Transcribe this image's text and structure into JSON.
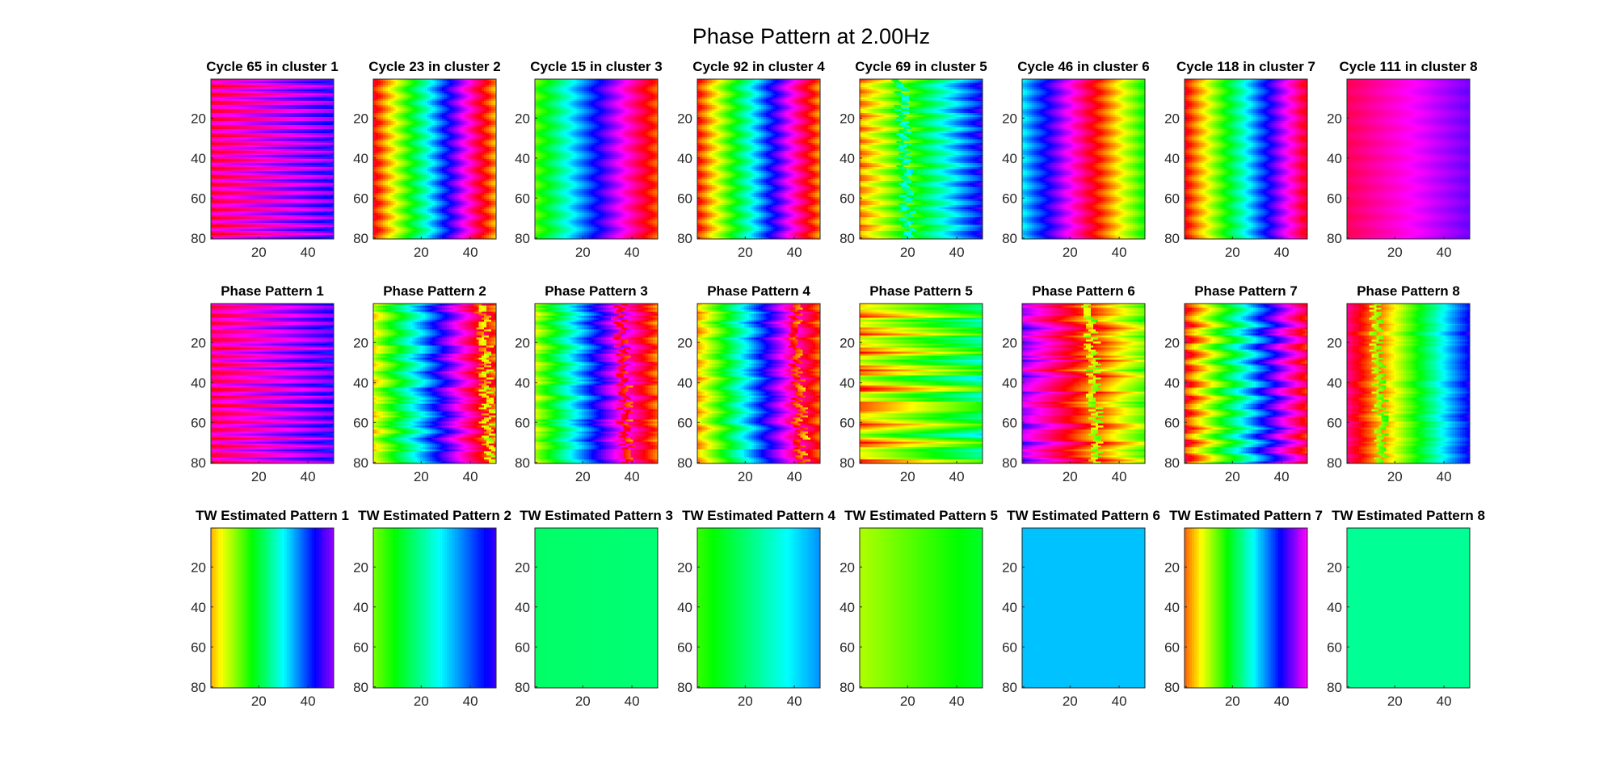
{
  "figure_title": "Phase Pattern at 2.00Hz",
  "colormap": "hsv",
  "chart_data": [
    {
      "type": "heatmap",
      "row": 1,
      "panels": [
        {
          "title": "Cycle 65 in cluster 1",
          "phase_start": 0.92,
          "phase_end": 0.72,
          "stripes": 0.08,
          "stripe_freq": 0.9,
          "jitter": 0.0,
          "wave_at": null
        },
        {
          "title": "Cycle 23 in cluster 2",
          "phase_start": 0.0,
          "phase_end": 1.1,
          "stripes": 0.04,
          "stripe_freq": 0.55,
          "jitter": 0.0,
          "wave_at": null
        },
        {
          "title": "Cycle 15 in cluster 3",
          "phase_start": 0.28,
          "phase_end": 1.05,
          "stripes": 0.03,
          "stripe_freq": 0.5,
          "jitter": 0.0,
          "wave_at": null
        },
        {
          "title": "Cycle 92 in cluster 4",
          "phase_start": 0.02,
          "phase_end": 1.08,
          "stripes": 0.04,
          "stripe_freq": 0.55,
          "jitter": 0.0,
          "wave_at": null
        },
        {
          "title": "Cycle 69 in cluster 5",
          "phase_start": 0.1,
          "phase_end": 0.72,
          "stripes": 0.05,
          "stripe_freq": 0.6,
          "jitter": 0.02,
          "wave_at": 17
        },
        {
          "title": "Cycle 46 in cluster 6",
          "phase_start": 0.52,
          "phase_end": 1.32,
          "stripes": 0.03,
          "stripe_freq": 0.55,
          "jitter": 0.0,
          "wave_at": null
        },
        {
          "title": "Cycle 118 in cluster 7",
          "phase_start": 0.0,
          "phase_end": 0.98,
          "stripes": 0.03,
          "stripe_freq": 0.55,
          "jitter": 0.0,
          "wave_at": null
        },
        {
          "title": "Cycle 111 in cluster 8",
          "phase_start": 0.94,
          "phase_end": 0.74,
          "stripes": 0.01,
          "stripe_freq": 0.5,
          "jitter": 0.0,
          "wave_at": null
        }
      ]
    },
    {
      "type": "heatmap",
      "row": 2,
      "panels": [
        {
          "title": "Phase Pattern 1",
          "phase_start": 0.92,
          "phase_end": 0.72,
          "stripes": 0.07,
          "stripe_freq": 0.9,
          "jitter": 0.03,
          "wave_at": null
        },
        {
          "title": "Phase Pattern 2",
          "phase_start": 0.18,
          "phase_end": 1.1,
          "stripes": 0.05,
          "stripe_freq": 0.45,
          "jitter": 0.03,
          "wave_at": 45
        },
        {
          "title": "Phase Pattern 3",
          "phase_start": 0.22,
          "phase_end": 1.12,
          "stripes": 0.04,
          "stripe_freq": 0.45,
          "jitter": 0.03,
          "wave_at": 35
        },
        {
          "title": "Phase Pattern 4",
          "phase_start": 0.12,
          "phase_end": 1.1,
          "stripes": 0.04,
          "stripe_freq": 0.45,
          "jitter": 0.03,
          "wave_at": 40
        },
        {
          "title": "Phase Pattern 5",
          "phase_start": 0.12,
          "phase_end": 0.38,
          "stripes": 0.09,
          "stripe_freq": 0.4,
          "jitter": 0.06,
          "wave_at": null
        },
        {
          "title": "Phase Pattern 6",
          "phase_start": 0.78,
          "phase_end": 1.32,
          "stripes": 0.05,
          "stripe_freq": 0.45,
          "jitter": 0.05,
          "wave_at": 28
        },
        {
          "title": "Phase Pattern 7",
          "phase_start": 0.02,
          "phase_end": 0.98,
          "stripes": 0.06,
          "stripe_freq": 0.5,
          "jitter": 0.03,
          "wave_at": null
        },
        {
          "title": "Phase Pattern 8",
          "phase_start": 0.92,
          "phase_end": 1.72,
          "stripes": 0.02,
          "stripe_freq": 0.45,
          "jitter": 0.02,
          "wave_at": 12
        }
      ]
    },
    {
      "type": "heatmap",
      "row": 3,
      "panels": [
        {
          "title": "TW Estimated Pattern 1",
          "phase_start": 0.12,
          "phase_end": 0.76,
          "stripes": 0,
          "stripe_freq": 0,
          "jitter": 0,
          "wave_at": null
        },
        {
          "title": "TW Estimated Pattern 2",
          "phase_start": 0.26,
          "phase_end": 0.7,
          "stripes": 0,
          "stripe_freq": 0,
          "jitter": 0,
          "wave_at": null
        },
        {
          "title": "TW Estimated Pattern 3",
          "phase_start": 0.4,
          "phase_end": 0.41,
          "stripes": 0,
          "stripe_freq": 0,
          "jitter": 0,
          "wave_at": null
        },
        {
          "title": "TW Estimated Pattern 4",
          "phase_start": 0.3,
          "phase_end": 0.57,
          "stripes": 0,
          "stripe_freq": 0,
          "jitter": 0,
          "wave_at": null
        },
        {
          "title": "TW Estimated Pattern 5",
          "phase_start": 0.22,
          "phase_end": 0.36,
          "stripes": 0,
          "stripe_freq": 0,
          "jitter": 0,
          "wave_at": null
        },
        {
          "title": "TW Estimated Pattern 6",
          "phase_start": 0.54,
          "phase_end": 0.54,
          "stripes": 0,
          "stripe_freq": 0,
          "jitter": 0,
          "wave_at": null
        },
        {
          "title": "TW Estimated Pattern 7",
          "phase_start": 0.07,
          "phase_end": 0.83,
          "stripes": 0,
          "stripe_freq": 0,
          "jitter": 0,
          "wave_at": null
        },
        {
          "title": "TW Estimated Pattern 8",
          "phase_start": 0.43,
          "phase_end": 0.43,
          "stripes": 0,
          "stripe_freq": 0,
          "jitter": 0,
          "wave_at": null
        }
      ]
    }
  ],
  "axes": {
    "x_range": [
      0.5,
      50.5
    ],
    "y_range": [
      0.5,
      80.5
    ],
    "x_ticks": [
      20,
      40
    ],
    "y_ticks": [
      20,
      40,
      60,
      80
    ],
    "y_reversed": true
  }
}
